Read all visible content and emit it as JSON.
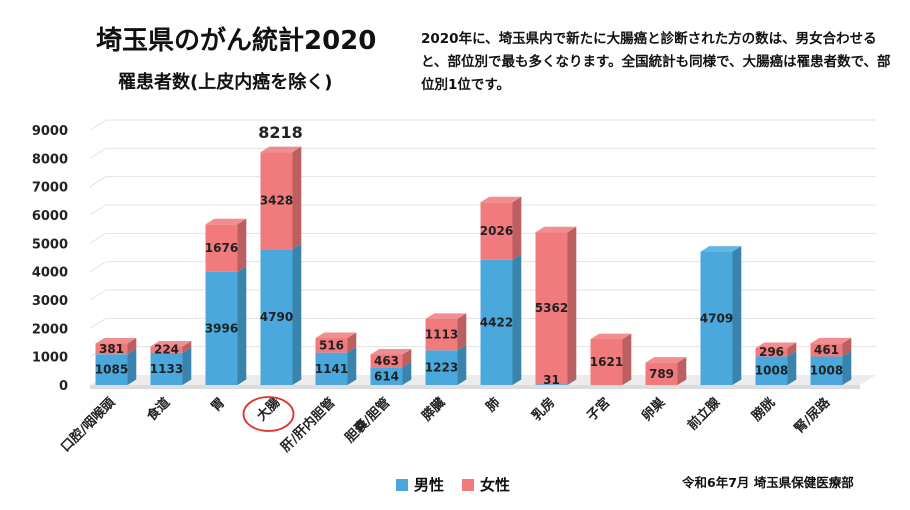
{
  "title": "埼玉県のがん統計2020",
  "subtitle": "罹患者数(上皮内癌を除く)",
  "note": "2020年に、埼玉県内で新たに大腸癌と診断された方の数は、男女合わせると、部位別で最も多くなります。全国統計も同様で、大腸癌は罹患者数で、部位別1位です。",
  "source": "令和6年7月 埼玉県保健医療部",
  "colors": {
    "male": "#4aa8dd",
    "female": "#f07a7c",
    "highlight": "#e0302a"
  },
  "chart_data": {
    "type": "bar",
    "stacked": true,
    "categories": [
      "口腔/咽喉頭",
      "食道",
      "胃",
      "大腸",
      "肝/肝内胆管",
      "胆嚢/胆管",
      "膵臓",
      "肺",
      "乳房",
      "子宮",
      "卵巣",
      "前立腺",
      "膀胱",
      "腎/尿路"
    ],
    "series": [
      {
        "name": "男性",
        "values": [
          1085,
          1133,
          3996,
          4790,
          1141,
          614,
          1223,
          4422,
          31,
          0,
          0,
          4709,
          1008,
          1008
        ]
      },
      {
        "name": "女性",
        "values": [
          381,
          224,
          1676,
          3428,
          516,
          463,
          1113,
          2026,
          5362,
          1621,
          789,
          0,
          296,
          461
        ]
      }
    ],
    "ylim": [
      0,
      9000
    ],
    "yticks": [
      0,
      1000,
      2000,
      3000,
      4000,
      5000,
      6000,
      7000,
      8000,
      9000
    ],
    "total_annotation": {
      "category": "大腸",
      "value": "8218"
    },
    "highlighted_category": "大腸",
    "legend": [
      "男性",
      "女性"
    ]
  }
}
